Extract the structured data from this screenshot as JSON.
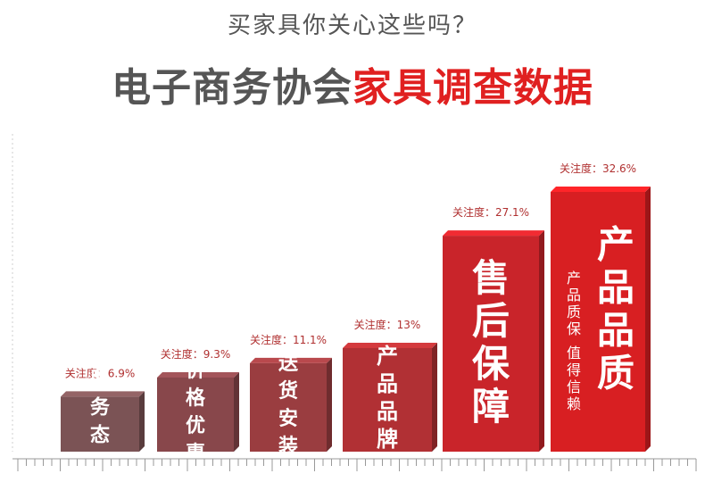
{
  "header": {
    "subtitle": "买家具你关心这些吗？",
    "title_part1": "电子商务协会",
    "title_part2": "家具调查数据"
  },
  "colors": {
    "title_gray": "#555555",
    "title_red": "#e02020",
    "value_label": "#b03030"
  },
  "chart_data": {
    "type": "bar",
    "title": "",
    "categories": [
      "服务态度",
      "价格优惠",
      "送货安装",
      "产品品牌",
      "售后保障",
      "产品品质"
    ],
    "values": [
      6.9,
      9.3,
      11.1,
      13,
      27.1,
      32.6
    ],
    "unit": "%",
    "value_labels": [
      "关注度：6.9%",
      "关注度：9.3%",
      "关注度：11.1%",
      "关注度：13%",
      "关注度：27.1%",
      "关注度：32.6%"
    ],
    "sublabel_last": [
      "产品质保",
      "值得信赖"
    ],
    "bar_colors": [
      "#7b5355",
      "#88474b",
      "#9a3d40",
      "#b13034",
      "#c9242a",
      "#d81f22"
    ],
    "xlabel": "",
    "ylabel": ""
  }
}
